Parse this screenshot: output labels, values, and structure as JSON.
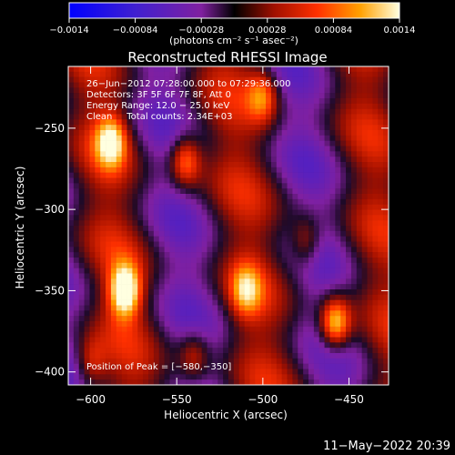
{
  "chart_data": {
    "type": "heatmap",
    "title": "Reconstructed RHESSI Image",
    "xlabel": "Heliocentric X (arcsec)",
    "ylabel": "Heliocentric Y (arcsec)",
    "xlim": [
      -613,
      -427
    ],
    "ylim": [
      -408,
      -212
    ],
    "x_ticks": [
      -600,
      -550,
      -500,
      -450
    ],
    "y_ticks": [
      -250,
      -300,
      -350,
      -400
    ],
    "x_tick_labels": [
      "−600",
      "−550",
      "−500",
      "−450"
    ],
    "y_tick_labels": [
      "−250",
      "−300",
      "−350",
      "−400"
    ],
    "colorbar": {
      "range": [
        -0.0014,
        0.0014
      ],
      "ticks": [
        -0.0014,
        -0.00084,
        -0.00028,
        0.00028,
        0.00084,
        0.0014
      ],
      "tick_labels": [
        "−0.0014",
        "−0.00084",
        "−0.00028",
        "0.00028",
        "0.00084",
        "0.0014"
      ],
      "unit_label": "(photons cm⁻² s⁻¹ asec⁻²)"
    },
    "annotations": [
      "26−Jun−2012 07:28:00.000 to 07:29:36.000",
      "Detectors: 3F 5F 6F 7F 8F, Att 0",
      "Energy Range: 12.0 − 25.0 keV",
      "Clean     Total counts: 2.34E+03"
    ],
    "peak_label": "Position of Peak = [−580,−350]",
    "peak": [
      -580,
      -350
    ],
    "bright_sources": [
      {
        "x": -580,
        "y": -350,
        "intensity": 1.0
      },
      {
        "x": -458,
        "y": -370,
        "intensity": 0.95
      },
      {
        "x": -588,
        "y": -258,
        "intensity": 0.75
      },
      {
        "x": -545,
        "y": -270,
        "intensity": 0.7
      },
      {
        "x": -500,
        "y": -230,
        "intensity": 0.55
      },
      {
        "x": -510,
        "y": -350,
        "intensity": 0.55
      },
      {
        "x": -475,
        "y": -320,
        "intensity": 0.45
      },
      {
        "x": -540,
        "y": -390,
        "intensity": 0.45
      },
      {
        "x": -600,
        "y": -395,
        "intensity": 0.4
      }
    ]
  },
  "footer": {
    "timestamp": "11−May−2022 20:39"
  }
}
